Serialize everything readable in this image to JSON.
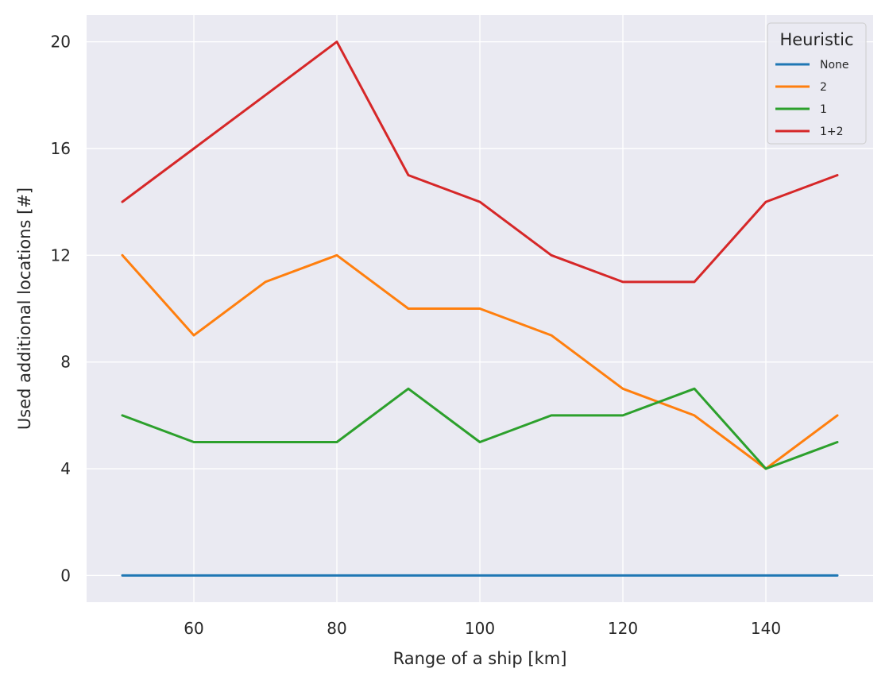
{
  "chart_data": {
    "type": "line",
    "xlabel": "Range of a ship [km]",
    "ylabel": "Used additional locations [#]",
    "xlim": [
      45,
      155
    ],
    "ylim": [
      -1,
      21
    ],
    "xticks": [
      60,
      80,
      100,
      120,
      140
    ],
    "yticks": [
      0,
      4,
      8,
      12,
      16,
      20
    ],
    "grid": true,
    "background": "#EAEAF2",
    "gridcolor": "#FFFFFF",
    "legend": {
      "title": "Heuristic",
      "placement": "top-right"
    },
    "x": [
      50,
      60,
      70,
      80,
      90,
      100,
      110,
      120,
      130,
      140,
      150
    ],
    "series": [
      {
        "name": "None",
        "color": "#1F77B4",
        "values": [
          0,
          0,
          0,
          0,
          0,
          0,
          0,
          0,
          0,
          0,
          0
        ]
      },
      {
        "name": "2",
        "color": "#FF7F0E",
        "values": [
          12,
          9,
          11,
          12,
          10,
          10,
          9,
          7,
          6,
          4,
          6
        ]
      },
      {
        "name": "1",
        "color": "#2CA02C",
        "values": [
          6,
          5,
          5,
          5,
          7,
          5,
          6,
          6,
          7,
          4,
          5
        ]
      },
      {
        "name": "1+2",
        "color": "#D62728",
        "values": [
          14,
          16,
          18,
          20,
          15,
          14,
          12,
          11,
          11,
          14,
          15
        ]
      }
    ]
  }
}
